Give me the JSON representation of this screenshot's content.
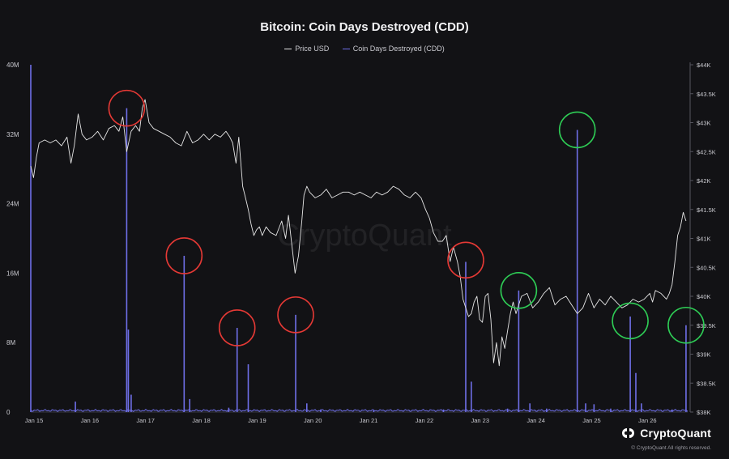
{
  "chart_data": {
    "type": "line",
    "title": "Bitcoin: Coin Days Destroyed (CDD)",
    "watermark": "CryptoQuant",
    "x_tick_labels": [
      "Jan 15",
      "Jan 16",
      "Jan 17",
      "Jan 18",
      "Jan 19",
      "Jan 20",
      "Jan 21",
      "Jan 22",
      "Jan 23",
      "Jan 24",
      "Jan 25",
      "Jan 26"
    ],
    "x_range_days": [
      15.0,
      26.78
    ],
    "y_left": {
      "ticks": [
        "0",
        "8M",
        "16M",
        "24M",
        "32M",
        "40M"
      ],
      "tick_values": [
        0,
        8000000,
        16000000,
        24000000,
        32000000,
        40000000
      ],
      "ylim": [
        0,
        40000000
      ]
    },
    "y_right": {
      "ticks": [
        "$38K",
        "$38.5K",
        "$39K",
        "$39.5K",
        "$40K",
        "$40.5K",
        "$41K",
        "$41.5K",
        "$42K",
        "$42.5K",
        "$43K",
        "$43.5K",
        "$44K"
      ],
      "ylim": [
        38000,
        44000
      ]
    },
    "series": [
      {
        "name": "Price USD",
        "color": "#e6e6e6",
        "axis": "right",
        "points": [
          [
            15.0,
            42250
          ],
          [
            15.05,
            42050
          ],
          [
            15.1,
            42400
          ],
          [
            15.15,
            42650
          ],
          [
            15.25,
            42700
          ],
          [
            15.35,
            42650
          ],
          [
            15.45,
            42700
          ],
          [
            15.55,
            42600
          ],
          [
            15.65,
            42750
          ],
          [
            15.72,
            42300
          ],
          [
            15.78,
            42600
          ],
          [
            15.85,
            43150
          ],
          [
            15.92,
            42800
          ],
          [
            16.0,
            42700
          ],
          [
            16.1,
            42750
          ],
          [
            16.2,
            42850
          ],
          [
            16.3,
            42700
          ],
          [
            16.4,
            42900
          ],
          [
            16.5,
            42950
          ],
          [
            16.58,
            42850
          ],
          [
            16.65,
            43100
          ],
          [
            16.72,
            42500
          ],
          [
            16.8,
            42850
          ],
          [
            16.88,
            42950
          ],
          [
            16.95,
            42850
          ],
          [
            17.0,
            43250
          ],
          [
            17.05,
            43400
          ],
          [
            17.12,
            43000
          ],
          [
            17.2,
            42900
          ],
          [
            17.3,
            42850
          ],
          [
            17.4,
            42800
          ],
          [
            17.5,
            42750
          ],
          [
            17.6,
            42650
          ],
          [
            17.7,
            42600
          ],
          [
            17.8,
            42850
          ],
          [
            17.9,
            42650
          ],
          [
            18.0,
            42700
          ],
          [
            18.1,
            42800
          ],
          [
            18.2,
            42700
          ],
          [
            18.3,
            42800
          ],
          [
            18.4,
            42750
          ],
          [
            18.5,
            42850
          ],
          [
            18.57,
            42750
          ],
          [
            18.62,
            42650
          ],
          [
            18.68,
            42300
          ],
          [
            18.73,
            42750
          ],
          [
            18.8,
            41900
          ],
          [
            18.85,
            41700
          ],
          [
            18.9,
            41500
          ],
          [
            18.95,
            41250
          ],
          [
            19.0,
            41050
          ],
          [
            19.05,
            41150
          ],
          [
            19.1,
            41200
          ],
          [
            19.15,
            41050
          ],
          [
            19.22,
            41200
          ],
          [
            19.3,
            41100
          ],
          [
            19.4,
            41050
          ],
          [
            19.5,
            41300
          ],
          [
            19.57,
            41000
          ],
          [
            19.62,
            41400
          ],
          [
            19.68,
            40900
          ],
          [
            19.74,
            40400
          ],
          [
            19.8,
            40700
          ],
          [
            19.86,
            41300
          ],
          [
            19.9,
            41750
          ],
          [
            19.95,
            41900
          ],
          [
            20.0,
            41800
          ],
          [
            20.1,
            41700
          ],
          [
            20.2,
            41750
          ],
          [
            20.3,
            41850
          ],
          [
            20.4,
            41700
          ],
          [
            20.5,
            41750
          ],
          [
            20.6,
            41800
          ],
          [
            20.7,
            41800
          ],
          [
            20.8,
            41750
          ],
          [
            20.9,
            41800
          ],
          [
            21.0,
            41750
          ],
          [
            21.1,
            41700
          ],
          [
            21.2,
            41800
          ],
          [
            21.3,
            41750
          ],
          [
            21.4,
            41800
          ],
          [
            21.5,
            41900
          ],
          [
            21.6,
            41850
          ],
          [
            21.7,
            41750
          ],
          [
            21.8,
            41700
          ],
          [
            21.9,
            41800
          ],
          [
            22.0,
            41700
          ],
          [
            22.08,
            41500
          ],
          [
            22.15,
            41350
          ],
          [
            22.22,
            41100
          ],
          [
            22.3,
            40950
          ],
          [
            22.38,
            40950
          ],
          [
            22.45,
            41050
          ],
          [
            22.52,
            40600
          ],
          [
            22.58,
            40850
          ],
          [
            22.65,
            40600
          ],
          [
            22.7,
            40350
          ],
          [
            22.75,
            39950
          ],
          [
            22.8,
            39800
          ],
          [
            22.85,
            39650
          ],
          [
            22.9,
            39700
          ],
          [
            22.95,
            39900
          ],
          [
            23.0,
            40000
          ],
          [
            23.05,
            39600
          ],
          [
            23.1,
            39550
          ],
          [
            23.15,
            40000
          ],
          [
            23.2,
            40050
          ],
          [
            23.25,
            39600
          ],
          [
            23.3,
            38850
          ],
          [
            23.35,
            39200
          ],
          [
            23.4,
            38800
          ],
          [
            23.45,
            39300
          ],
          [
            23.5,
            39100
          ],
          [
            23.55,
            39400
          ],
          [
            23.6,
            39700
          ],
          [
            23.65,
            39900
          ],
          [
            23.7,
            39700
          ],
          [
            23.8,
            40000
          ],
          [
            23.9,
            40050
          ],
          [
            24.0,
            39800
          ],
          [
            24.1,
            39900
          ],
          [
            24.2,
            40050
          ],
          [
            24.3,
            40150
          ],
          [
            24.4,
            39850
          ],
          [
            24.5,
            39950
          ],
          [
            24.6,
            40000
          ],
          [
            24.7,
            39850
          ],
          [
            24.8,
            39700
          ],
          [
            24.9,
            39800
          ],
          [
            25.0,
            40050
          ],
          [
            25.1,
            39800
          ],
          [
            25.2,
            39950
          ],
          [
            25.3,
            39850
          ],
          [
            25.4,
            40000
          ],
          [
            25.5,
            39900
          ],
          [
            25.6,
            39800
          ],
          [
            25.7,
            39850
          ],
          [
            25.8,
            39950
          ],
          [
            25.9,
            39900
          ],
          [
            26.0,
            39950
          ],
          [
            26.1,
            40050
          ],
          [
            26.15,
            39900
          ],
          [
            26.2,
            40100
          ],
          [
            26.3,
            40050
          ],
          [
            26.4,
            39950
          ],
          [
            26.45,
            40050
          ],
          [
            26.5,
            40200
          ],
          [
            26.55,
            40600
          ],
          [
            26.6,
            41050
          ],
          [
            26.65,
            41200
          ],
          [
            26.7,
            41450
          ],
          [
            26.75,
            41300
          ]
        ]
      },
      {
        "name": "Coin Days Destroyed (CDD)",
        "color": "#6f6fe8",
        "axis": "left",
        "baseline_level": 150000,
        "spikes": [
          [
            15.0,
            40000000
          ],
          [
            15.8,
            1200000
          ],
          [
            16.72,
            35000000
          ],
          [
            16.75,
            9500000
          ],
          [
            16.8,
            2000000
          ],
          [
            17.75,
            18000000
          ],
          [
            17.85,
            1500000
          ],
          [
            18.55,
            500000
          ],
          [
            18.7,
            9700000
          ],
          [
            18.9,
            5500000
          ],
          [
            19.75,
            11200000
          ],
          [
            19.95,
            1000000
          ],
          [
            20.2,
            300000
          ],
          [
            21.15,
            200000
          ],
          [
            22.4,
            300000
          ],
          [
            22.8,
            17300000
          ],
          [
            22.9,
            3500000
          ],
          [
            23.55,
            400000
          ],
          [
            23.75,
            14000000
          ],
          [
            23.95,
            1000000
          ],
          [
            24.25,
            400000
          ],
          [
            24.8,
            32500000
          ],
          [
            24.95,
            1000000
          ],
          [
            25.1,
            900000
          ],
          [
            25.4,
            400000
          ],
          [
            25.75,
            11000000
          ],
          [
            25.85,
            4500000
          ],
          [
            25.95,
            1000000
          ],
          [
            26.5,
            300000
          ],
          [
            26.75,
            10000000
          ]
        ]
      }
    ],
    "annotations": [
      {
        "type": "circle",
        "color": "red",
        "x": 16.72,
        "y_left": 35000000
      },
      {
        "type": "circle",
        "color": "red",
        "x": 17.75,
        "y_left": 18000000
      },
      {
        "type": "circle",
        "color": "red",
        "x": 18.7,
        "y_left": 9700000
      },
      {
        "type": "circle",
        "color": "red",
        "x": 19.75,
        "y_left": 11200000
      },
      {
        "type": "circle",
        "color": "red",
        "x": 22.8,
        "y_left": 17500000
      },
      {
        "type": "circle",
        "color": "green",
        "x": 23.75,
        "y_left": 14000000
      },
      {
        "type": "circle",
        "color": "green",
        "x": 24.8,
        "y_left": 32500000
      },
      {
        "type": "circle",
        "color": "green",
        "x": 25.75,
        "y_left": 10500000
      },
      {
        "type": "circle",
        "color": "green",
        "x": 26.75,
        "y_left": 10000000
      }
    ],
    "grid": false,
    "legend_position": "top-center"
  },
  "brand": {
    "name": "CryptoQuant",
    "copyright": "© CryptoQuant All rights reserved."
  },
  "colors": {
    "background": "#121215",
    "price": "#e6e6e6",
    "cdd": "#6f6fe8",
    "circle_red": "#e53935",
    "circle_green": "#2ecc55",
    "axis_text": "#c9c9cf"
  }
}
